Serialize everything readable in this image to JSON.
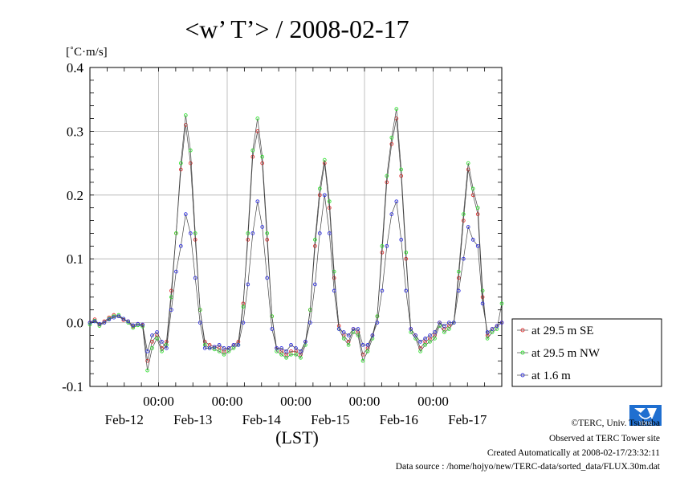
{
  "chart_data": {
    "type": "line",
    "title": "<w’ T’> / 2008-02-17",
    "ylabel": "[˚C·m/s]",
    "xlabel": "(LST)",
    "ylim": [
      -0.1,
      0.4
    ],
    "yticks": [
      "0.4",
      "0.3",
      "0.2",
      "0.1",
      "0.0",
      "-0.1"
    ],
    "yticks_values": [
      0.4,
      0.3,
      0.2,
      0.1,
      0.0,
      -0.1
    ],
    "xlim_hours": [
      0,
      144
    ],
    "x_time_ticks": [
      "00:00",
      "00:00",
      "00:00",
      "00:00",
      "00:00"
    ],
    "x_date_ticks": [
      "Feb-12",
      "Feb-13",
      "Feb-14",
      "Feb-15",
      "Feb-16",
      "Feb-17"
    ],
    "grid": true,
    "legend_position": "right",
    "series": [
      {
        "name": "at 29.5 m SE",
        "color": "#e03030",
        "values": [
          0.0,
          0.005,
          -0.003,
          0.002,
          0.008,
          0.012,
          0.01,
          0.004,
          0.002,
          -0.006,
          -0.002,
          -0.004,
          -0.06,
          -0.03,
          -0.02,
          -0.04,
          -0.03,
          0.05,
          0.14,
          0.24,
          0.31,
          0.25,
          0.13,
          0.02,
          -0.03,
          -0.035,
          -0.038,
          -0.04,
          -0.045,
          -0.04,
          -0.035,
          -0.03,
          0.03,
          0.13,
          0.26,
          0.3,
          0.25,
          0.13,
          0.01,
          -0.04,
          -0.045,
          -0.05,
          -0.045,
          -0.045,
          -0.05,
          -0.03,
          0.02,
          0.12,
          0.2,
          0.25,
          0.18,
          0.07,
          -0.005,
          -0.02,
          -0.03,
          -0.01,
          -0.015,
          -0.05,
          -0.04,
          -0.02,
          0.01,
          0.11,
          0.22,
          0.28,
          0.32,
          0.23,
          0.1,
          -0.01,
          -0.02,
          -0.04,
          -0.03,
          -0.025,
          -0.02,
          0.0,
          -0.01,
          -0.005,
          0.0,
          0.07,
          0.16,
          0.24,
          0.2,
          0.17,
          0.04,
          -0.02,
          -0.01,
          -0.005,
          0.0
        ]
      },
      {
        "name": "at 29.5 m NW",
        "color": "#30e030",
        "values": [
          -0.003,
          0.003,
          -0.005,
          0.0,
          0.006,
          0.01,
          0.012,
          0.006,
          0.0,
          -0.008,
          -0.004,
          -0.006,
          -0.075,
          -0.04,
          -0.025,
          -0.045,
          -0.035,
          0.04,
          0.14,
          0.25,
          0.325,
          0.27,
          0.14,
          0.02,
          -0.035,
          -0.04,
          -0.042,
          -0.045,
          -0.05,
          -0.045,
          -0.04,
          -0.035,
          0.025,
          0.14,
          0.27,
          0.32,
          0.26,
          0.14,
          0.01,
          -0.045,
          -0.05,
          -0.055,
          -0.05,
          -0.05,
          -0.055,
          -0.035,
          0.02,
          0.13,
          0.21,
          0.255,
          0.19,
          0.08,
          -0.01,
          -0.025,
          -0.035,
          -0.015,
          -0.02,
          -0.06,
          -0.045,
          -0.025,
          0.01,
          0.12,
          0.23,
          0.29,
          0.335,
          0.24,
          0.11,
          -0.015,
          -0.025,
          -0.045,
          -0.035,
          -0.03,
          -0.025,
          -0.005,
          -0.015,
          -0.01,
          0.0,
          0.08,
          0.17,
          0.25,
          0.21,
          0.18,
          0.05,
          -0.025,
          -0.015,
          -0.01,
          0.03
        ]
      },
      {
        "name": "at 1.6 m",
        "color": "#3030e0",
        "values": [
          0.0,
          0.002,
          -0.002,
          0.0,
          0.005,
          0.008,
          0.01,
          0.006,
          0.002,
          -0.004,
          -0.002,
          -0.003,
          -0.045,
          -0.02,
          -0.015,
          -0.03,
          -0.04,
          0.02,
          0.08,
          0.12,
          0.17,
          0.14,
          0.07,
          0.0,
          -0.04,
          -0.04,
          -0.038,
          -0.035,
          -0.04,
          -0.04,
          -0.035,
          -0.035,
          0.0,
          0.06,
          0.14,
          0.19,
          0.15,
          0.07,
          -0.01,
          -0.04,
          -0.04,
          -0.045,
          -0.035,
          -0.04,
          -0.045,
          -0.03,
          0.0,
          0.06,
          0.14,
          0.2,
          0.14,
          0.05,
          -0.01,
          -0.015,
          -0.02,
          -0.01,
          -0.01,
          -0.035,
          -0.035,
          -0.02,
          0.0,
          0.05,
          0.12,
          0.17,
          0.19,
          0.13,
          0.05,
          -0.01,
          -0.02,
          -0.03,
          -0.025,
          -0.02,
          -0.015,
          0.0,
          -0.005,
          0.0,
          0.0,
          0.05,
          0.1,
          0.15,
          0.13,
          0.12,
          0.03,
          -0.015,
          -0.01,
          -0.005,
          0.0
        ]
      }
    ]
  },
  "legend": {
    "items": [
      "at 29.5 m SE",
      "at 29.5 m NW",
      "at 1.6 m"
    ]
  },
  "credits": {
    "copyright": "©TERC, Univ. Tsukuba",
    "observed": "Observed at TERC Tower site",
    "created": "Created Automatically at 2008-02-17/23:32:11",
    "source": "Data source : /home/hojyo/new/TERC-data/sorted_data/FLUX.30m.dat"
  },
  "logo": {
    "text": "TERC",
    "color": "#1f6fd0"
  }
}
